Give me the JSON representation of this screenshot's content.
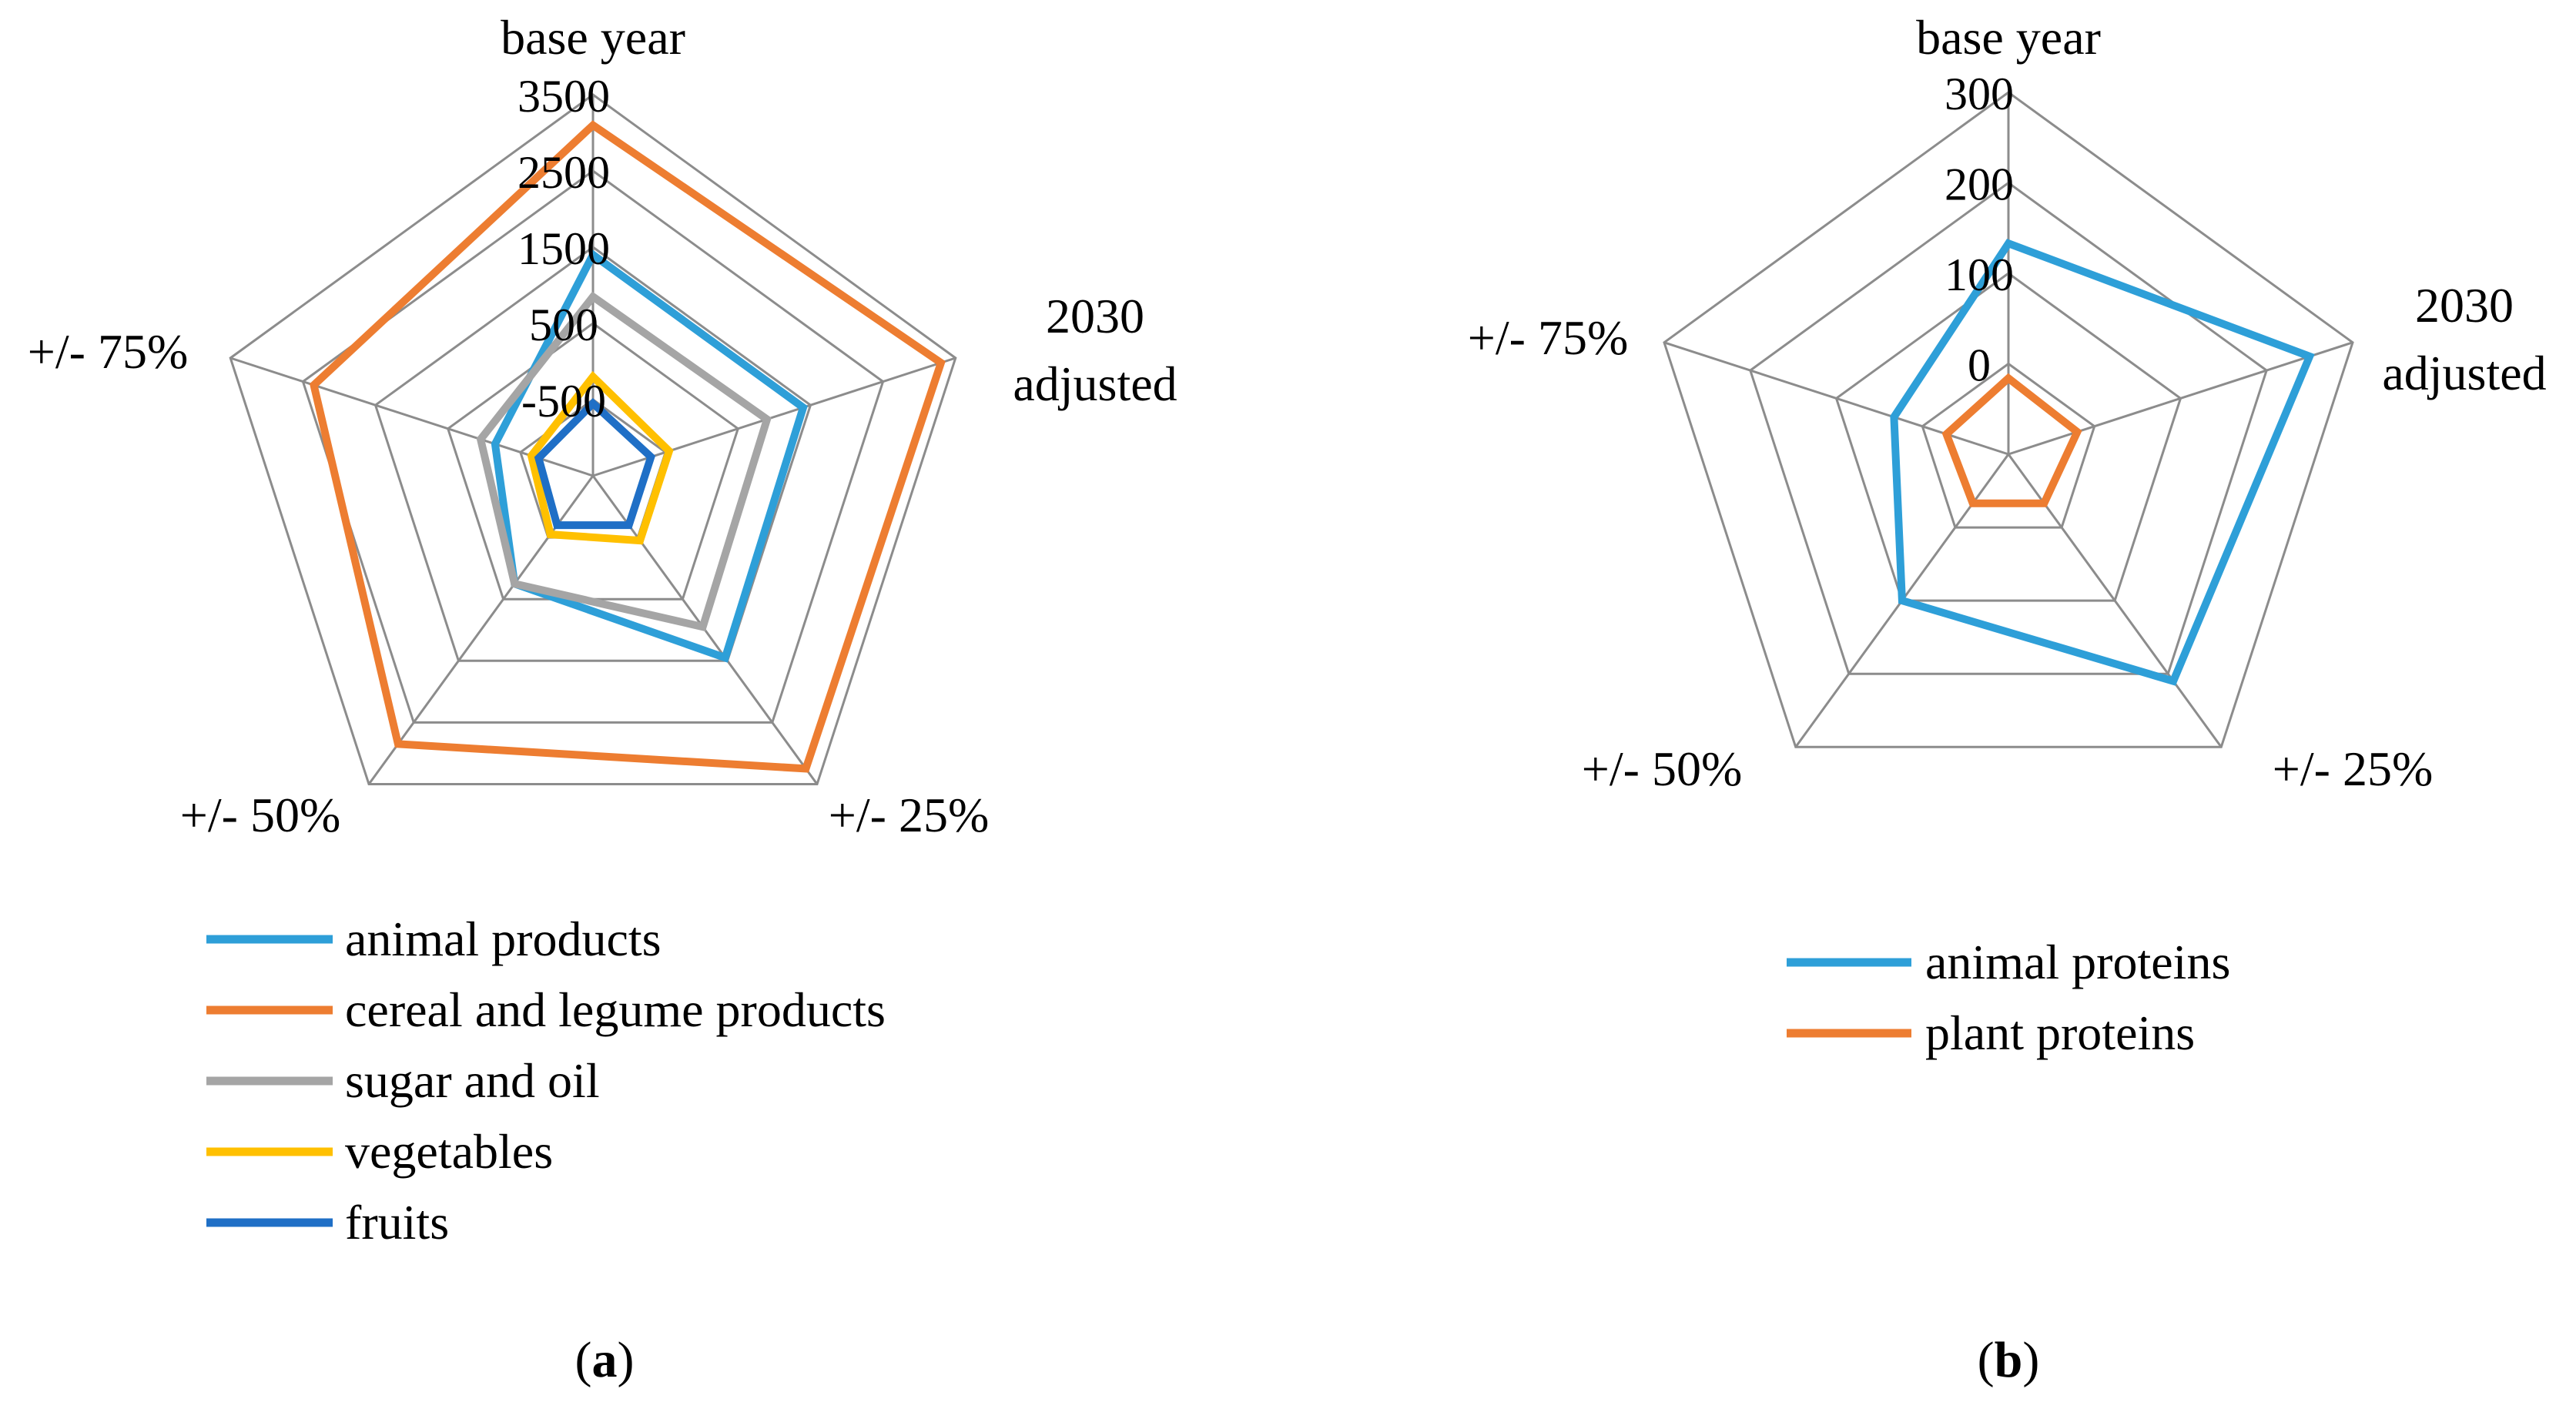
{
  "chart_data": [
    {
      "type": "radar",
      "panel_label": "(a)",
      "categories": [
        "base year",
        "2030 adjusted",
        "+/- 25%",
        "+/- 50%",
        "+/- 75%"
      ],
      "category_lines": [
        [
          "base year"
        ],
        [
          "2030",
          "adjusted"
        ],
        [
          "+/- 25%"
        ],
        [
          "+/- 50%"
        ],
        [
          "+/- 75%"
        ]
      ],
      "radial_range": [
        -1500,
        3500
      ],
      "ring_values": [
        -1500,
        -500,
        500,
        1500,
        2500,
        3500
      ],
      "tick_labels": [
        "-500",
        "500",
        "1500",
        "2500",
        "3500"
      ],
      "series": [
        {
          "name": "animal products",
          "color": "#2e9fd8",
          "values": [
            1400,
            1400,
            1450,
            250,
            -150
          ]
        },
        {
          "name": "cereal and legume products",
          "color": "#ed7d31",
          "values": [
            3100,
            3300,
            3250,
            2850,
            2350
          ]
        },
        {
          "name": "sugar and oil",
          "color": "#a5a5a5",
          "values": [
            850,
            900,
            950,
            250,
            50
          ]
        },
        {
          "name": "vegetables",
          "color": "#ffc000",
          "values": [
            -200,
            -450,
            -450,
            -550,
            -650
          ]
        },
        {
          "name": "fruits",
          "color": "#1f6fc6",
          "values": [
            -550,
            -700,
            -700,
            -700,
            -750
          ]
        }
      ]
    },
    {
      "type": "radar",
      "panel_label": "(b)",
      "categories": [
        "base year",
        "2030 adjusted",
        "+/- 25%",
        "+/- 50%",
        "+/- 75%"
      ],
      "category_lines": [
        [
          "base year"
        ],
        [
          "2030",
          "adjusted"
        ],
        [
          "+/- 25%"
        ],
        [
          "+/- 50%"
        ],
        [
          "+/- 75%"
        ]
      ],
      "radial_range": [
        -100,
        300
      ],
      "ring_values": [
        -100,
        0,
        100,
        200,
        300
      ],
      "tick_labels": [
        "0",
        "100",
        "200",
        "300"
      ],
      "series": [
        {
          "name": "animal proteins",
          "color": "#2e9fd8",
          "values": [
            133,
            250,
            210,
            100,
            33
          ]
        },
        {
          "name": "plant proteins",
          "color": "#ed7d31",
          "values": [
            -16,
            -20,
            -33,
            -33,
            -28
          ]
        }
      ]
    }
  ]
}
